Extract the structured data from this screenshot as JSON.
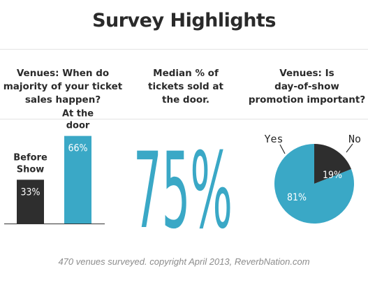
{
  "title": "Survey Highlights",
  "footer": "470 venues surveyed. copyright April 2013, ReverbNation.com",
  "colors": {
    "accent": "#3aa8c6",
    "dark": "#2e2e2e",
    "text": "#2a2a2a",
    "muted": "#8c8c8c"
  },
  "questions": {
    "q1": [
      "Venues: When do",
      "majority of your ticket",
      "sales happen?"
    ],
    "q2": [
      "Median % of",
      "tickets sold at",
      "the door."
    ],
    "q3": [
      "Venues: Is",
      "day-of-show",
      "promotion important?"
    ]
  },
  "chart_data": [
    {
      "type": "bar",
      "categories": [
        "Before Show",
        "At the door"
      ],
      "category_label_lines": [
        [
          "Before",
          "Show"
        ],
        [
          "At the",
          "door"
        ]
      ],
      "values": [
        33,
        66
      ],
      "value_labels": [
        "33%",
        "66%"
      ],
      "ylim": [
        0,
        100
      ]
    },
    {
      "type": "table",
      "value": 75,
      "value_label": "75%"
    },
    {
      "type": "pie",
      "categories": [
        "Yes",
        "No"
      ],
      "values": [
        81,
        19
      ],
      "value_labels": [
        "81%",
        "19%"
      ]
    }
  ]
}
